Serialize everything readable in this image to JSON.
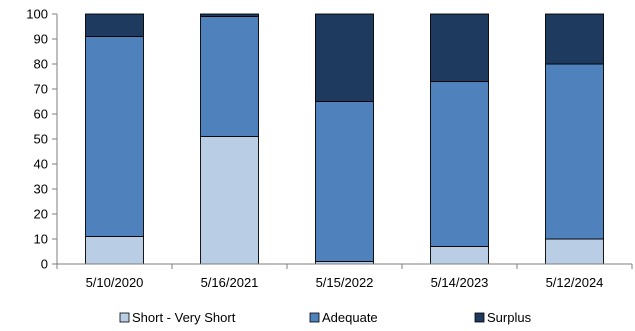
{
  "chart_data": {
    "type": "bar",
    "stacked": true,
    "categories": [
      "5/10/2020",
      "5/16/2021",
      "5/15/2022",
      "5/14/2023",
      "5/12/2024"
    ],
    "series": [
      {
        "name": "Short - Very Short",
        "color": "#b9cde5",
        "values": [
          11,
          51,
          1,
          7,
          10
        ]
      },
      {
        "name": "Adequate",
        "color": "#4f81bd",
        "values": [
          80,
          48,
          64,
          66,
          70
        ]
      },
      {
        "name": "Surplus",
        "color": "#1f3a5f",
        "values": [
          9,
          1,
          35,
          27,
          20
        ]
      }
    ],
    "ylim": [
      0,
      100
    ],
    "yticks": [
      0,
      10,
      20,
      30,
      40,
      50,
      60,
      70,
      80,
      90,
      100
    ],
    "grid": false,
    "legend_position": "bottom"
  }
}
